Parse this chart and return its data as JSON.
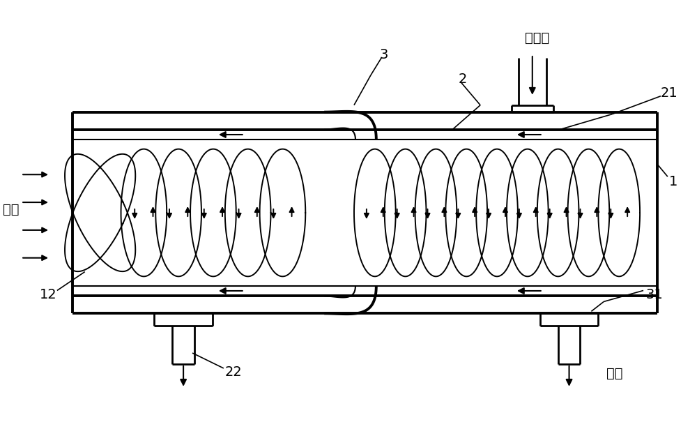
{
  "bg_color": "#ffffff",
  "line_color": "#000000",
  "labels": {
    "yan_qi": "烟气",
    "leng_que_shui": "冷却水",
    "fei_shui": "废水",
    "n1": "1",
    "n2": "2",
    "n3": "3",
    "n12": "12",
    "n21": "21",
    "n22": "22",
    "n31": "31"
  },
  "figsize": [
    10.0,
    6.05
  ],
  "dpi": 100
}
